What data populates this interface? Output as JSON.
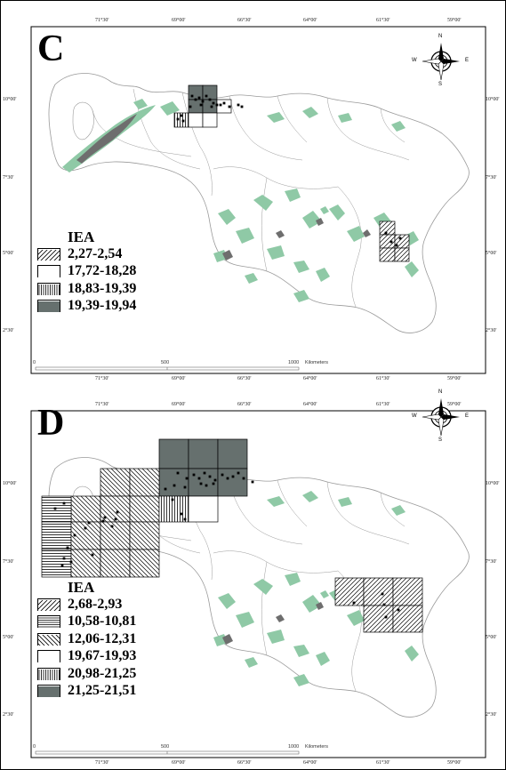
{
  "coords": {
    "lon": [
      "71°30'",
      "69°00'",
      "66°30'",
      "64°00'",
      "61°30'",
      "59°00'"
    ],
    "lat": [
      "10°00'",
      "7°30'",
      "5°00'",
      "2°30'"
    ]
  },
  "compass": {
    "n": "N",
    "s": "S",
    "e": "E",
    "w": "W"
  },
  "scale": {
    "zero": "0",
    "mid": "500",
    "end": "1000",
    "unit": "Kilometers"
  },
  "panels": [
    {
      "letter": "C",
      "legend_title": "IEA",
      "legend": [
        {
          "label": "2,27-2,54",
          "pattern": "diag-ur"
        },
        {
          "label": "17,72-18,28",
          "pattern": "white"
        },
        {
          "label": "18,83-19,39",
          "pattern": "vert"
        },
        {
          "label": "19,39-19,94",
          "pattern": "dark"
        }
      ]
    },
    {
      "letter": "D",
      "legend_title": "IEA",
      "legend": [
        {
          "label": "2,68-2,93",
          "pattern": "diag-ur"
        },
        {
          "label": "10,58-10,81",
          "pattern": "horiz"
        },
        {
          "label": "12,06-12,31",
          "pattern": "diag-dr"
        },
        {
          "label": "19,67-19,93",
          "pattern": "white"
        },
        {
          "label": "20,98-21,25",
          "pattern": "vert"
        },
        {
          "label": "21,25-21,51",
          "pattern": "dark"
        }
      ]
    }
  ],
  "colors": {
    "map_outline": "#9a9a9a",
    "green_relief": "#8fc9a6",
    "dark_relief": "#6e6e6e",
    "dark_cell": "#66706e",
    "points": "#000000"
  }
}
